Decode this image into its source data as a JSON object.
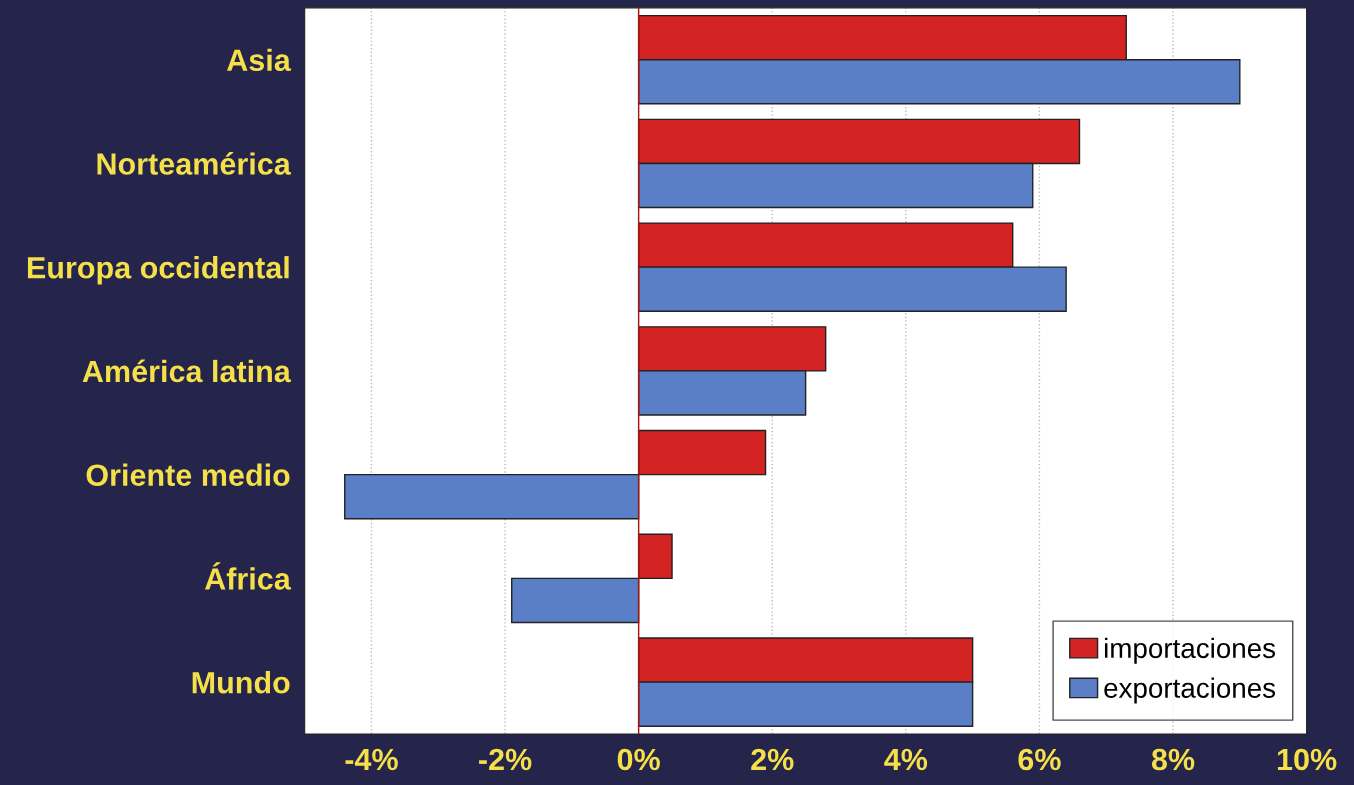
{
  "chart_data": {
    "type": "bar",
    "orientation": "horizontal",
    "categories": [
      "Asia",
      "Norteamérica",
      "Europa occidental",
      "América latina",
      "Oriente medio",
      "África",
      "Mundo"
    ],
    "series": [
      {
        "name": "importaciones",
        "color": "#d42323",
        "values": [
          7.3,
          6.6,
          5.6,
          2.8,
          1.9,
          0.5,
          5.0
        ]
      },
      {
        "name": "exportaciones",
        "color": "#5a7fc6",
        "values": [
          9.0,
          5.9,
          6.4,
          2.5,
          -4.4,
          -1.9,
          5.0
        ]
      }
    ],
    "xlim": [
      -5,
      10
    ],
    "xticks": [
      {
        "value": -4,
        "label": "-4%"
      },
      {
        "value": -2,
        "label": "-2%"
      },
      {
        "value": 0,
        "label": "0%"
      },
      {
        "value": 2,
        "label": "2%"
      },
      {
        "value": 4,
        "label": "4%"
      },
      {
        "value": 6,
        "label": "6%"
      },
      {
        "value": 8,
        "label": "8%"
      },
      {
        "value": 10,
        "label": "10%"
      }
    ],
    "ref_lines": [
      {
        "axis": "x",
        "value": 0,
        "color": "#b01010"
      }
    ],
    "grid": "x",
    "legend": "bottom right"
  }
}
